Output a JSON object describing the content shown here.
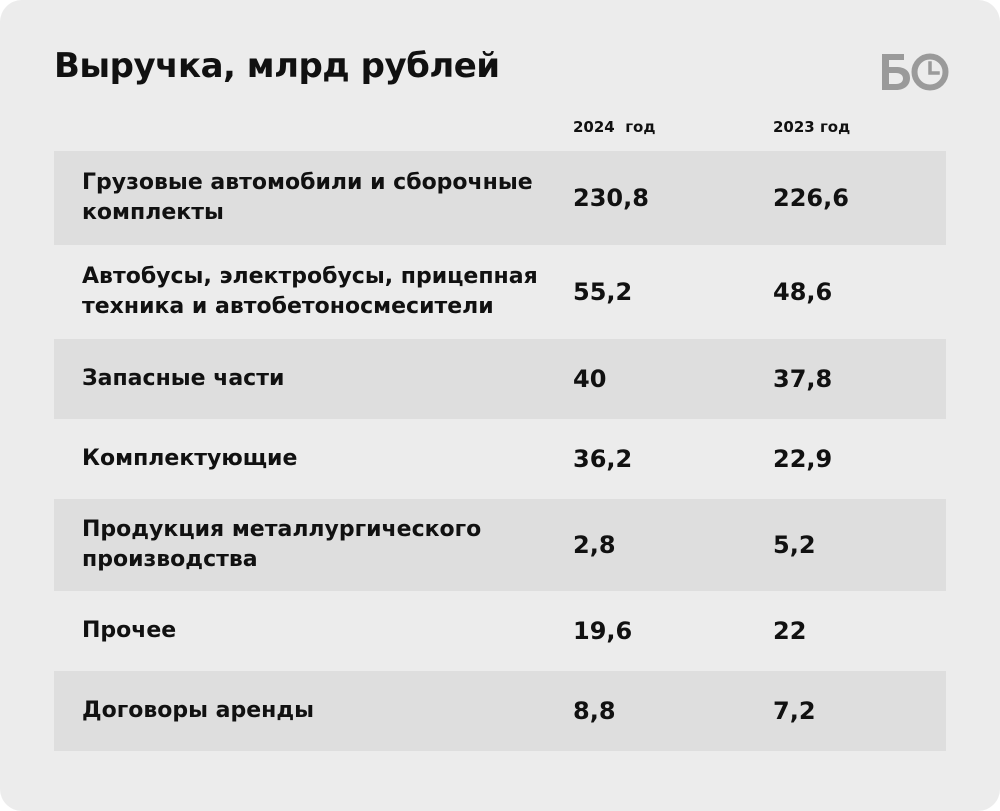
{
  "title": "Выручка, млрд рублей",
  "logo_text": "БО",
  "columns": [
    "2024  год",
    "2023 год"
  ],
  "chart_data": {
    "type": "table",
    "title": "Выручка, млрд рублей",
    "columns": [
      "2024  год",
      "2023 год"
    ],
    "rows": [
      {
        "label": "Грузовые автомобили и сборочные комплекты",
        "v2024": "230,8",
        "v2023": "226,6"
      },
      {
        "label": "Автобусы, электробусы, прицепная техника и автобетоносмесители",
        "v2024": "55,2",
        "v2023": "48,6"
      },
      {
        "label": "Запасные части",
        "v2024": "40",
        "v2023": "37,8"
      },
      {
        "label": "Комплектующие",
        "v2024": "36,2",
        "v2023": "22,9"
      },
      {
        "label": "Продукция металлургического производства",
        "v2024": "2,8",
        "v2023": "5,2"
      },
      {
        "label": "Прочее",
        "v2024": "19,6",
        "v2023": "22"
      },
      {
        "label": "Договоры аренды",
        "v2024": "8,8",
        "v2023": "7,2"
      }
    ]
  },
  "colors": {
    "card_background": "#ececec",
    "row_shaded": "#dedede",
    "text": "#111111",
    "logo": "#9a9a9a"
  }
}
